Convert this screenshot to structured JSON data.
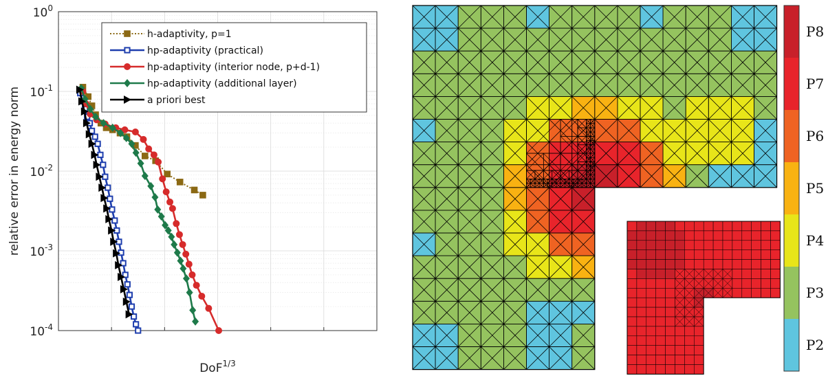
{
  "chart_data": [
    {
      "type": "line",
      "xlabel": "DoF",
      "xlabel_sup": "1/3",
      "ylabel": "relative error in energy norm",
      "xlim": [
        0,
        60
      ],
      "ylim": [
        0.0001,
        1
      ],
      "yscale": "log",
      "grid": true,
      "legend_position": "top-right",
      "x_ticks": [
        "0",
        "10",
        "20",
        "30",
        "40",
        "50",
        "60"
      ],
      "y_ticks": [
        {
          "base": "10",
          "exp": "0",
          "value": 1
        },
        {
          "base": "10",
          "exp": "-1",
          "value": 0.1
        },
        {
          "base": "10",
          "exp": "-2",
          "value": 0.01
        },
        {
          "base": "10",
          "exp": "-3",
          "value": 0.001
        },
        {
          "base": "10",
          "exp": "-4",
          "value": 0.0001
        }
      ],
      "series": [
        {
          "name": "h-adaptivity, p=1",
          "color": "#8B6914",
          "marker": "square",
          "dash": "dotted",
          "x": [
            4.6,
            5.6,
            6.3,
            7.0,
            8.0,
            9.0,
            10.2,
            11.6,
            12.9,
            14.5,
            16.3,
            18.3,
            20.5,
            22.9,
            25.6,
            27.2
          ],
          "y": [
            0.113,
            0.086,
            0.066,
            0.051,
            0.04,
            0.035,
            0.033,
            0.03,
            0.027,
            0.021,
            0.0155,
            0.0135,
            0.0092,
            0.0073,
            0.0058,
            0.005
          ]
        },
        {
          "name": "hp-adaptivity (practical)",
          "color": "#1f3fae",
          "marker": "open-square",
          "dash": "solid",
          "x": [
            4.1,
            4.6,
            5.0,
            5.4,
            5.9,
            6.3,
            6.9,
            7.4,
            7.9,
            8.4,
            8.8,
            9.3,
            9.7,
            10.1,
            10.6,
            11.0,
            11.4,
            11.8,
            12.2,
            12.6,
            13.0,
            13.4,
            13.8,
            14.2,
            14.6,
            15.0
          ],
          "y": [
            0.095,
            0.075,
            0.06,
            0.048,
            0.04,
            0.032,
            0.027,
            0.022,
            0.016,
            0.012,
            0.0085,
            0.0062,
            0.0045,
            0.0033,
            0.0024,
            0.0018,
            0.0013,
            0.00095,
            0.0007,
            0.0005,
            0.00038,
            0.00028,
            0.0002,
            0.00015,
            0.00012,
            0.0001
          ]
        },
        {
          "name": "hp-adaptivity (interior node, p+d-1)",
          "color": "#d62b2b",
          "marker": "circle",
          "dash": "solid",
          "x": [
            4.6,
            5.2,
            6.0,
            7.2,
            8.8,
            10.8,
            12.5,
            14.5,
            16.0,
            17.0,
            18.0,
            18.8,
            19.6,
            20.3,
            21.0,
            21.5,
            22.2,
            22.8,
            23.4,
            24.0,
            24.6,
            25.2,
            26.0,
            27.0,
            28.3,
            30.2
          ],
          "y": [
            0.1,
            0.07,
            0.052,
            0.044,
            0.039,
            0.035,
            0.033,
            0.031,
            0.025,
            0.019,
            0.016,
            0.013,
            0.008,
            0.0055,
            0.0041,
            0.0034,
            0.0022,
            0.0016,
            0.0012,
            0.00091,
            0.00068,
            0.0005,
            0.00037,
            0.00027,
            0.00019,
            0.0001
          ]
        },
        {
          "name": "hp-adaptivity (additional layer)",
          "color": "#1e7a4a",
          "marker": "diamond",
          "dash": "solid",
          "x": [
            4.3,
            5.0,
            6.0,
            7.0,
            8.5,
            10.2,
            11.7,
            12.8,
            13.8,
            14.6,
            15.5,
            16.3,
            17.4,
            18.2,
            18.7,
            19.4,
            20.1,
            20.7,
            21.3,
            21.8,
            22.4,
            23.0,
            23.5,
            24.1,
            24.7,
            25.3,
            25.8
          ],
          "y": [
            0.11,
            0.08,
            0.06,
            0.048,
            0.04,
            0.035,
            0.03,
            0.026,
            0.022,
            0.017,
            0.0125,
            0.0087,
            0.0065,
            0.0047,
            0.0033,
            0.0027,
            0.0021,
            0.0018,
            0.0015,
            0.0012,
            0.00095,
            0.00075,
            0.0006,
            0.00045,
            0.0003,
            0.00018,
            0.00013
          ]
        },
        {
          "name": "a priori best",
          "color": "#000000",
          "marker": "triangle-right",
          "dash": "solid",
          "x": [
            4.0,
            4.4,
            4.9,
            5.3,
            5.8,
            6.3,
            6.8,
            7.2,
            7.7,
            8.2,
            8.6,
            9.1,
            9.5,
            10.0,
            10.4,
            10.9,
            11.3,
            11.8,
            12.3,
            12.8,
            13.3
          ],
          "y": [
            0.105,
            0.075,
            0.056,
            0.04,
            0.029,
            0.022,
            0.016,
            0.012,
            0.0085,
            0.0062,
            0.0046,
            0.0034,
            0.0025,
            0.0018,
            0.0013,
            0.00093,
            0.00066,
            0.00047,
            0.00033,
            0.00023,
            0.00016
          ]
        }
      ]
    },
    {
      "type": "heatmap",
      "title": "",
      "colorbar_labels": [
        "P8",
        "P7",
        "P6",
        "P5",
        "P4",
        "P3",
        "P2"
      ],
      "colorbar_colors": [
        "#c8202a",
        "#e8242b",
        "#ef6322",
        "#f9b212",
        "#e8e519",
        "#95c35f",
        "#5fc5df"
      ]
    }
  ]
}
